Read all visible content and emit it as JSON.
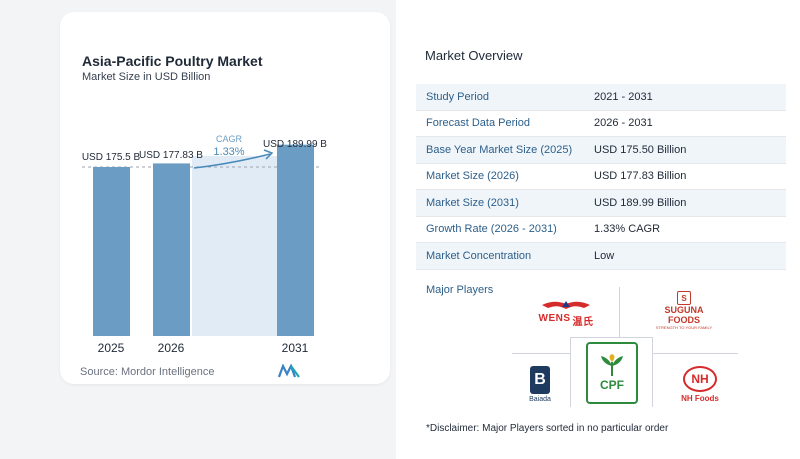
{
  "chart_data": {
    "type": "bar",
    "title": "Asia-Pacific Poultry Market",
    "subtitle": "Market Size in USD Billion",
    "categories": [
      "2025",
      "2026",
      "2031"
    ],
    "values": [
      175.5,
      177.83,
      189.99
    ],
    "value_labels": [
      "USD 175.5 B",
      "USD 177.83 B",
      "USD 189.99 B"
    ],
    "cagr_label": "CAGR",
    "cagr_value": "1.33%",
    "bar_color": "#6b9dc4",
    "bar_color_light": "#e0ebf5",
    "accent_color": "#4a8ab8"
  },
  "source": "Source:  Mordor Intelligence",
  "overview": {
    "title": "Market Overview",
    "rows": [
      {
        "key": "Study Period",
        "value": "2021 - 2031"
      },
      {
        "key": "Forecast Data Period",
        "value": "2026 - 2031"
      },
      {
        "key": "Base Year Market Size (2025)",
        "value": "USD 175.50 Billion"
      },
      {
        "key": "Market Size (2026)",
        "value": "USD 177.83 Billion"
      },
      {
        "key": "Market Size (2031)",
        "value": "USD 189.99 Billion"
      },
      {
        "key": "Growth Rate (2026 - 2031)",
        "value": "1.33% CAGR"
      },
      {
        "key": "Market Concentration",
        "value": "Low"
      }
    ]
  },
  "players": {
    "label": "Major Players",
    "logos": {
      "wens": "WENS",
      "wens_cn": "温氏",
      "suguna_1": "SUGUNA",
      "suguna_2": "FOODS",
      "suguna_tag": "STRENGTH TO YOUR FAMILY",
      "baiada": "Baiada",
      "cpf": "CPF",
      "nh": "NH",
      "nh_foods": "NH Foods"
    }
  },
  "disclaimer": "*Disclaimer: Major Players sorted in no particular order"
}
